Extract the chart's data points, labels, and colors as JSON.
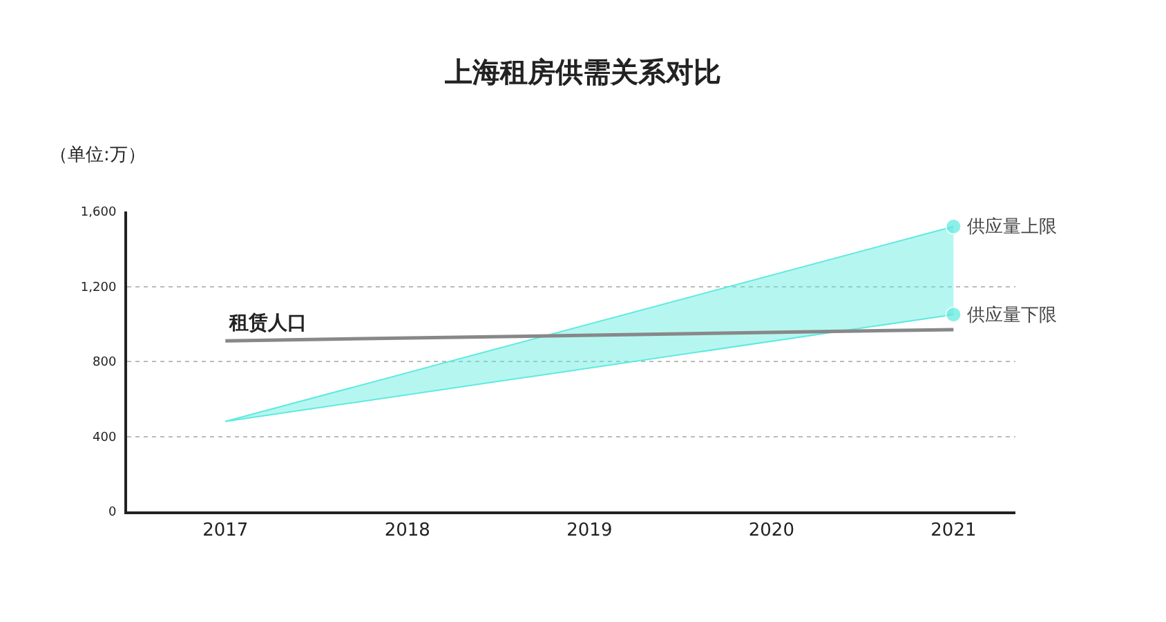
{
  "chart_data": {
    "type": "line",
    "title": "上海租房供需关系对比",
    "ylabel": "（单位:万）",
    "x": [
      2017,
      2021
    ],
    "xlim": [
      2016.46,
      2021.34
    ],
    "xticks": [
      2017,
      2018,
      2019,
      2020,
      2021
    ],
    "ylim": [
      0,
      1600
    ],
    "yticks": [
      0,
      400,
      800,
      {
        "value": 1200,
        "label": "1,200"
      },
      {
        "value": 1600,
        "label": "1,600"
      }
    ],
    "grid": "y",
    "legend": false,
    "marker": "none",
    "line_style": "solid",
    "series": [
      {
        "name": "供应量下限",
        "marker": "circle",
        "color": "#5eeadf",
        "values": [
          480,
          1050
        ],
        "lower": [
          480,
          1050
        ],
        "upper": [
          480,
          1520
        ]
      },
      {
        "name": "供应量上限",
        "marker": "circle",
        "color": "#5eeadf",
        "values": [
          480,
          1520
        ]
      },
      {
        "name": "租赁人口",
        "color": "#888888",
        "values": [
          910,
          970
        ]
      }
    ]
  }
}
